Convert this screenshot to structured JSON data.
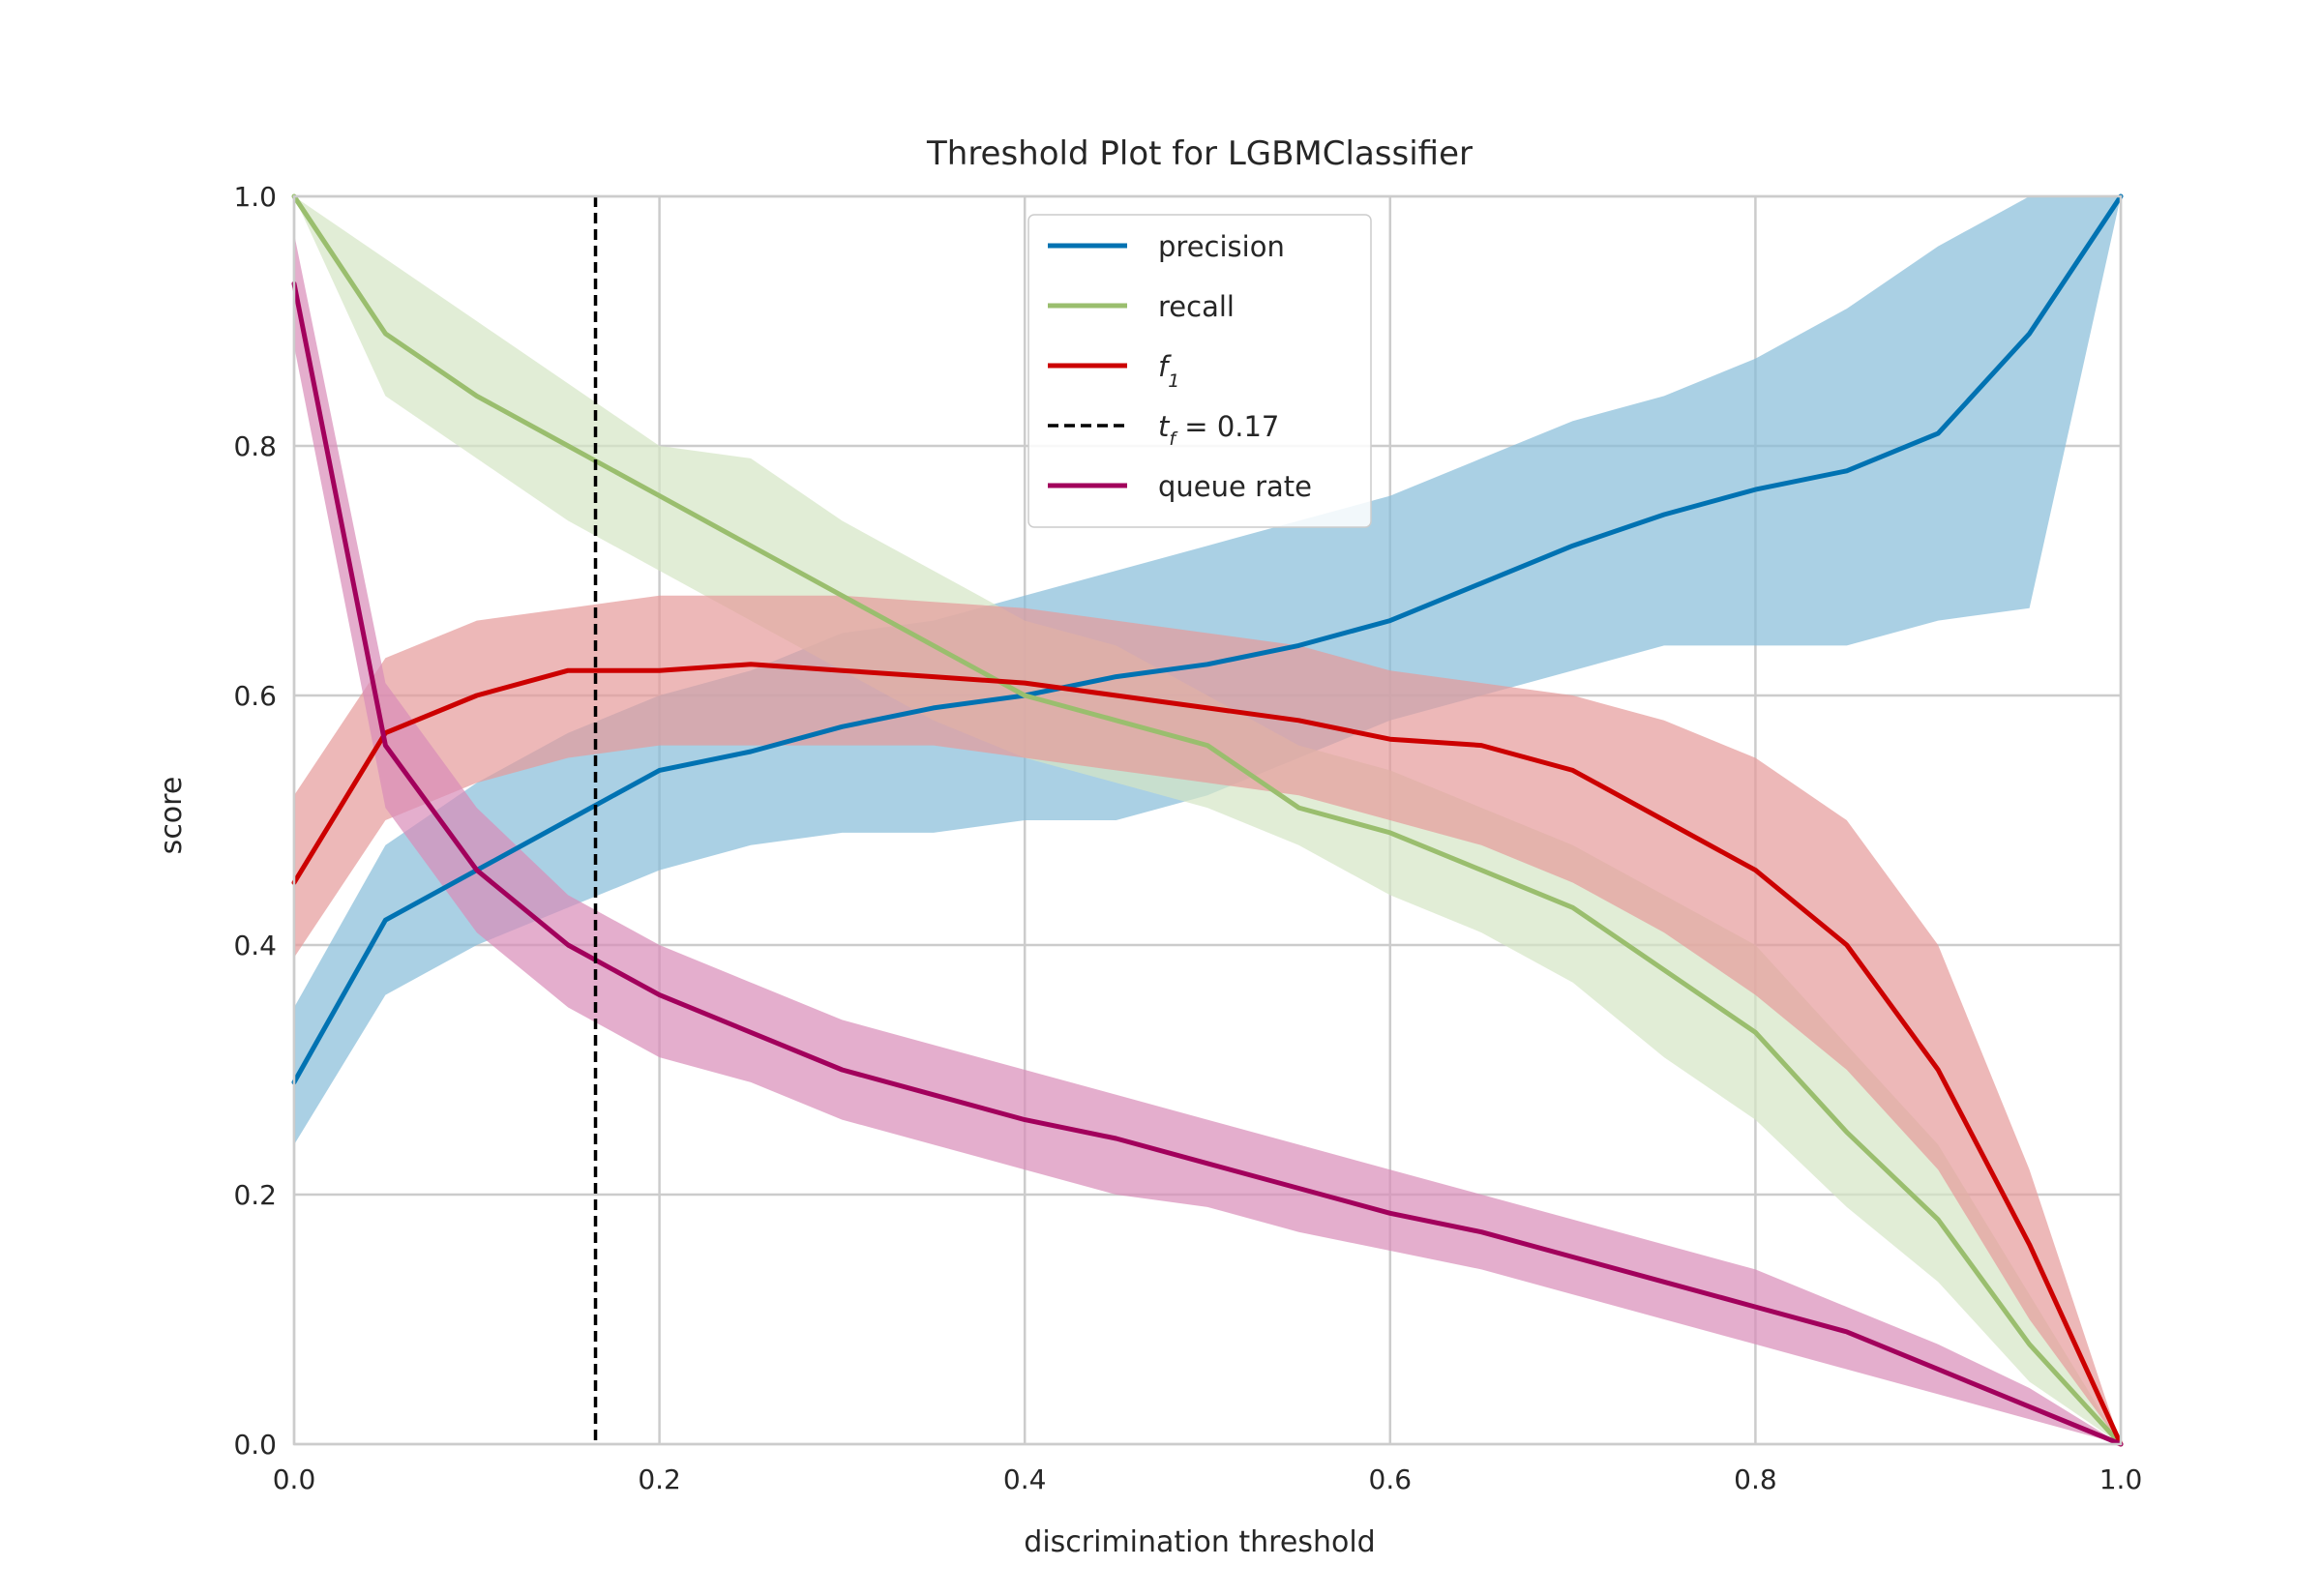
{
  "chart_data": {
    "type": "line",
    "title": "Threshold Plot for LGBMClassifier",
    "xlabel": "discrimination threshold",
    "ylabel": "score",
    "xlim": [
      0.0,
      1.0
    ],
    "ylim": [
      0.0,
      1.0
    ],
    "xticks": [
      "0.0",
      "0.2",
      "0.4",
      "0.6",
      "0.8",
      "1.0"
    ],
    "yticks": [
      "0.0",
      "0.2",
      "0.4",
      "0.6",
      "0.8",
      "1.0"
    ],
    "grid": true,
    "legend_position": "upper-center",
    "threshold": {
      "name_base": "t",
      "name_sub": "f",
      "label_rest": " = 0.17",
      "value": 0.165,
      "color": "#000000",
      "style": "dashed"
    },
    "x": [
      0.0,
      0.05,
      0.1,
      0.15,
      0.2,
      0.25,
      0.3,
      0.35,
      0.4,
      0.45,
      0.5,
      0.55,
      0.6,
      0.65,
      0.7,
      0.75,
      0.8,
      0.85,
      0.9,
      0.95,
      1.0
    ],
    "series": [
      {
        "name": "precision",
        "color": "#0072B2",
        "band_color": "#86BCD9",
        "values": [
          0.29,
          0.42,
          0.46,
          0.5,
          0.54,
          0.555,
          0.575,
          0.59,
          0.6,
          0.615,
          0.625,
          0.64,
          0.66,
          0.69,
          0.72,
          0.745,
          0.765,
          0.78,
          0.81,
          0.89,
          1.0
        ],
        "lower": [
          0.24,
          0.36,
          0.4,
          0.43,
          0.46,
          0.48,
          0.49,
          0.49,
          0.5,
          0.5,
          0.52,
          0.55,
          0.58,
          0.6,
          0.62,
          0.64,
          0.64,
          0.64,
          0.66,
          0.67,
          1.0
        ],
        "upper": [
          0.35,
          0.48,
          0.53,
          0.57,
          0.6,
          0.62,
          0.65,
          0.66,
          0.68,
          0.7,
          0.72,
          0.74,
          0.76,
          0.79,
          0.82,
          0.84,
          0.87,
          0.91,
          0.96,
          1.0,
          1.0
        ]
      },
      {
        "name": "recall",
        "color": "#9ABE6E",
        "band_color": "#D4E6C4",
        "values": [
          1.0,
          0.89,
          0.84,
          0.8,
          0.76,
          0.72,
          0.68,
          0.64,
          0.6,
          0.58,
          0.56,
          0.51,
          0.49,
          0.46,
          0.43,
          0.38,
          0.33,
          0.25,
          0.18,
          0.08,
          0.0
        ],
        "lower": [
          1.0,
          0.84,
          0.79,
          0.74,
          0.7,
          0.66,
          0.62,
          0.58,
          0.55,
          0.53,
          0.51,
          0.48,
          0.44,
          0.41,
          0.37,
          0.31,
          0.26,
          0.19,
          0.13,
          0.05,
          0.0
        ],
        "upper": [
          1.0,
          0.95,
          0.9,
          0.85,
          0.8,
          0.79,
          0.74,
          0.7,
          0.66,
          0.64,
          0.6,
          0.56,
          0.54,
          0.51,
          0.48,
          0.44,
          0.4,
          0.32,
          0.24,
          0.12,
          0.0
        ]
      },
      {
        "name": "f1",
        "label_base": "f",
        "label_sub": "1",
        "color": "#CC0000",
        "band_color": "#E69A9A",
        "values": [
          0.45,
          0.57,
          0.6,
          0.62,
          0.62,
          0.625,
          0.62,
          0.615,
          0.61,
          0.6,
          0.59,
          0.58,
          0.565,
          0.56,
          0.54,
          0.5,
          0.46,
          0.4,
          0.3,
          0.16,
          0.0
        ],
        "lower": [
          0.39,
          0.5,
          0.53,
          0.55,
          0.56,
          0.56,
          0.56,
          0.56,
          0.55,
          0.54,
          0.53,
          0.52,
          0.5,
          0.48,
          0.45,
          0.41,
          0.36,
          0.3,
          0.22,
          0.1,
          0.0
        ],
        "upper": [
          0.52,
          0.63,
          0.66,
          0.67,
          0.68,
          0.68,
          0.68,
          0.675,
          0.67,
          0.66,
          0.65,
          0.64,
          0.62,
          0.61,
          0.6,
          0.58,
          0.55,
          0.5,
          0.4,
          0.22,
          0.0
        ]
      },
      {
        "name": "queue rate",
        "color": "#A2005C",
        "band_color": "#D98CB8",
        "values": [
          0.93,
          0.56,
          0.46,
          0.4,
          0.36,
          0.33,
          0.3,
          0.28,
          0.26,
          0.245,
          0.225,
          0.205,
          0.185,
          0.17,
          0.15,
          0.13,
          0.11,
          0.09,
          0.06,
          0.03,
          0.0
        ],
        "lower": [
          0.88,
          0.51,
          0.41,
          0.35,
          0.31,
          0.29,
          0.26,
          0.24,
          0.22,
          0.2,
          0.19,
          0.17,
          0.155,
          0.14,
          0.12,
          0.1,
          0.08,
          0.06,
          0.04,
          0.02,
          0.0
        ],
        "upper": [
          0.97,
          0.61,
          0.51,
          0.44,
          0.4,
          0.37,
          0.34,
          0.32,
          0.3,
          0.28,
          0.26,
          0.24,
          0.22,
          0.2,
          0.18,
          0.16,
          0.14,
          0.11,
          0.08,
          0.045,
          0.0
        ]
      }
    ]
  }
}
